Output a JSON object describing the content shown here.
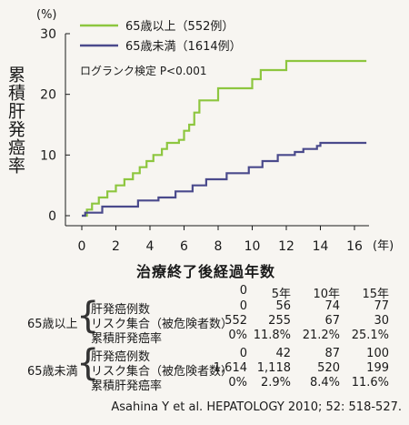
{
  "chart_data": {
    "type": "line",
    "step": true,
    "unit_label": "(%)",
    "ylabel": "累積肝発癌率",
    "xlabel": "治療終了後経過年数",
    "x_unit_label": "(年)",
    "xlim": [
      0,
      17
    ],
    "ylim": [
      0,
      30
    ],
    "x_ticks": [
      "0",
      "2",
      "4",
      "6",
      "8",
      "10",
      "12",
      "14",
      "16"
    ],
    "y_ticks": [
      "0",
      "10",
      "20",
      "30"
    ],
    "annotation": "ログランク検定 P<0.001",
    "legend_position": "top-left",
    "series": [
      {
        "name": "65歳以上（552例）",
        "color": "#8dc63f",
        "points": [
          [
            0,
            0
          ],
          [
            0.3,
            1
          ],
          [
            0.6,
            2
          ],
          [
            1,
            3
          ],
          [
            1.5,
            4
          ],
          [
            2,
            5
          ],
          [
            2.5,
            6
          ],
          [
            3,
            7
          ],
          [
            3.4,
            8
          ],
          [
            3.8,
            9
          ],
          [
            4.2,
            10
          ],
          [
            4.7,
            11
          ],
          [
            5,
            12
          ],
          [
            5.7,
            12.5
          ],
          [
            6,
            14
          ],
          [
            6.3,
            15
          ],
          [
            6.6,
            17
          ],
          [
            6.9,
            19
          ],
          [
            7.2,
            19
          ],
          [
            8,
            21
          ],
          [
            9.6,
            21
          ],
          [
            10,
            22.5
          ],
          [
            10.5,
            24
          ],
          [
            11.8,
            24
          ],
          [
            12,
            25.5
          ],
          [
            16.7,
            25.5
          ]
        ]
      },
      {
        "name": "65歳未満（1614例）",
        "color": "#4a4a8c",
        "points": [
          [
            0,
            0
          ],
          [
            0.2,
            0.5
          ],
          [
            1,
            0.5
          ],
          [
            1.2,
            1.5
          ],
          [
            3,
            1.5
          ],
          [
            3.3,
            2.5
          ],
          [
            4.3,
            2.5
          ],
          [
            4.5,
            3
          ],
          [
            5.3,
            3
          ],
          [
            5.5,
            4
          ],
          [
            6.2,
            4
          ],
          [
            6.5,
            5
          ],
          [
            7,
            5
          ],
          [
            7.3,
            6
          ],
          [
            8.3,
            6
          ],
          [
            8.5,
            7
          ],
          [
            9.6,
            7
          ],
          [
            9.8,
            8
          ],
          [
            10.4,
            8
          ],
          [
            10.6,
            9
          ],
          [
            11.2,
            9
          ],
          [
            11.5,
            10
          ],
          [
            12.5,
            10.5
          ],
          [
            13,
            11
          ],
          [
            13.8,
            11.5
          ],
          [
            14,
            12
          ],
          [
            16.7,
            12
          ]
        ]
      }
    ]
  },
  "risk_table": {
    "years": [
      "0",
      "5年",
      "10年",
      "15年"
    ],
    "groups": [
      {
        "name": "65歳以上",
        "rows": [
          {
            "label": "肝発癌例数",
            "values": [
              "0",
              "56",
              "74",
              "77"
            ]
          },
          {
            "label": "リスク集合（被危険者数）",
            "values": [
              "552",
              "255",
              "67",
              "30"
            ]
          },
          {
            "label": "累積肝発癌率",
            "values": [
              "0%",
              "11.8%",
              "21.2%",
              "25.1%"
            ]
          }
        ]
      },
      {
        "name": "65歳未満",
        "rows": [
          {
            "label": "肝発癌例数",
            "values": [
              "0",
              "42",
              "87",
              "100"
            ]
          },
          {
            "label": "リスク集合（被危険者数）",
            "values": [
              "1,614",
              "1,118",
              "520",
              "199"
            ]
          },
          {
            "label": "累積肝発癌率",
            "values": [
              "0%",
              "2.9%",
              "8.4%",
              "11.6%"
            ]
          }
        ]
      }
    ]
  },
  "caption": "Asahina Y et al. HEPATOLOGY 2010; 52: 518-527."
}
